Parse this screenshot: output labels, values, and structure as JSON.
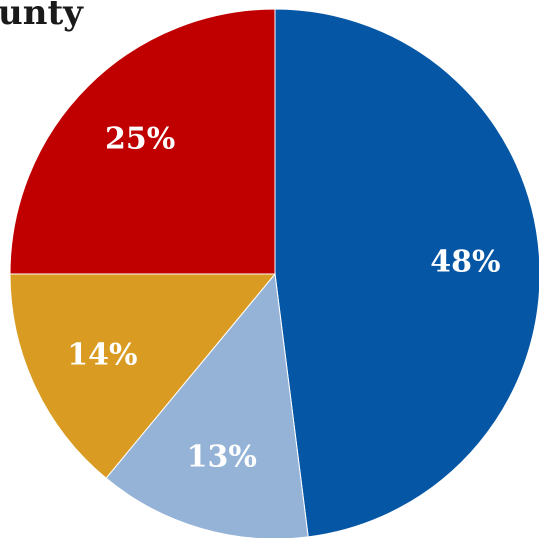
{
  "chart_data": {
    "type": "pie",
    "title": "unty",
    "slices": [
      {
        "label": "48%",
        "value": 48,
        "color": "#0556A4"
      },
      {
        "label": "13%",
        "value": 13,
        "color": "#94B3D7"
      },
      {
        "label": "14%",
        "value": 14,
        "color": "#D99B21"
      },
      {
        "label": "25%",
        "value": 25,
        "color": "#C00000"
      }
    ]
  }
}
